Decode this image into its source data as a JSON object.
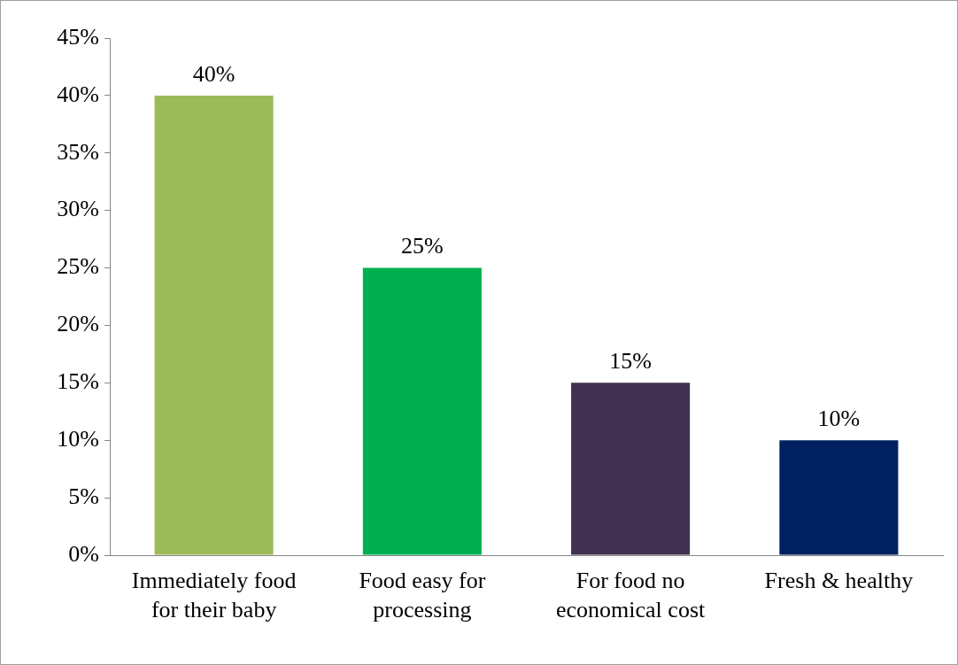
{
  "chart_data": {
    "type": "bar",
    "categories": [
      "Immediately food for their baby",
      "Food easy for processing",
      "For food no economical cost",
      "Fresh & healthy"
    ],
    "values": [
      40,
      25,
      15,
      10
    ],
    "colors": [
      "#9bbb59",
      "#00b050",
      "#403151",
      "#002060"
    ],
    "value_labels": [
      "40%",
      "25%",
      "15%",
      "10%"
    ],
    "ylim": [
      0,
      45
    ],
    "yticks": [
      {
        "value": 0,
        "label": "0%"
      },
      {
        "value": 5,
        "label": "5%"
      },
      {
        "value": 10,
        "label": "10%"
      },
      {
        "value": 15,
        "label": "15%"
      },
      {
        "value": 20,
        "label": "20%"
      },
      {
        "value": 25,
        "label": "25%"
      },
      {
        "value": 30,
        "label": "30%"
      },
      {
        "value": 35,
        "label": "35%"
      },
      {
        "value": 40,
        "label": "40%"
      },
      {
        "value": 45,
        "label": "45%"
      }
    ],
    "grid": false,
    "legend": false
  }
}
